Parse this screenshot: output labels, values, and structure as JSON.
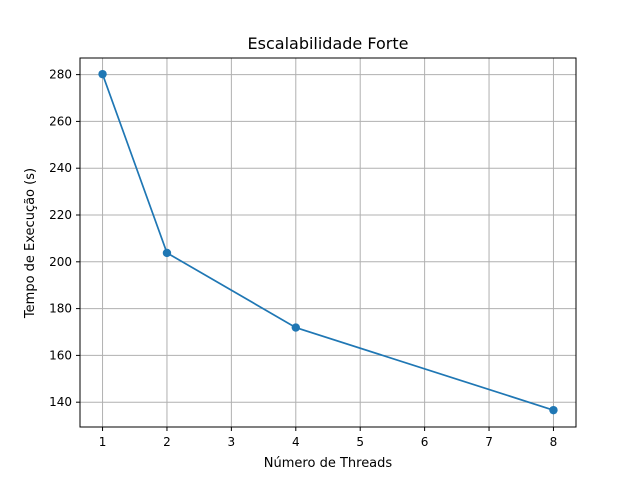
{
  "chart_data": {
    "type": "line",
    "title": "Escalabilidade Forte",
    "xlabel": "Número de Threads",
    "ylabel": "Tempo de Execução (s)",
    "x": [
      1,
      2,
      4,
      8
    ],
    "series": [
      {
        "values": [
          280.2,
          203.8,
          171.9,
          136.6
        ]
      }
    ],
    "xlim": [
      0.65,
      8.35
    ],
    "ylim": [
      129.4,
      287.1
    ],
    "xticks": [
      1,
      2,
      3,
      4,
      5,
      6,
      7,
      8
    ],
    "yticks": [
      140,
      160,
      180,
      200,
      220,
      240,
      260,
      280
    ],
    "grid": true,
    "marker": "circle",
    "line_color": "#1f77b4",
    "grid_color": "#b0b0b0"
  }
}
